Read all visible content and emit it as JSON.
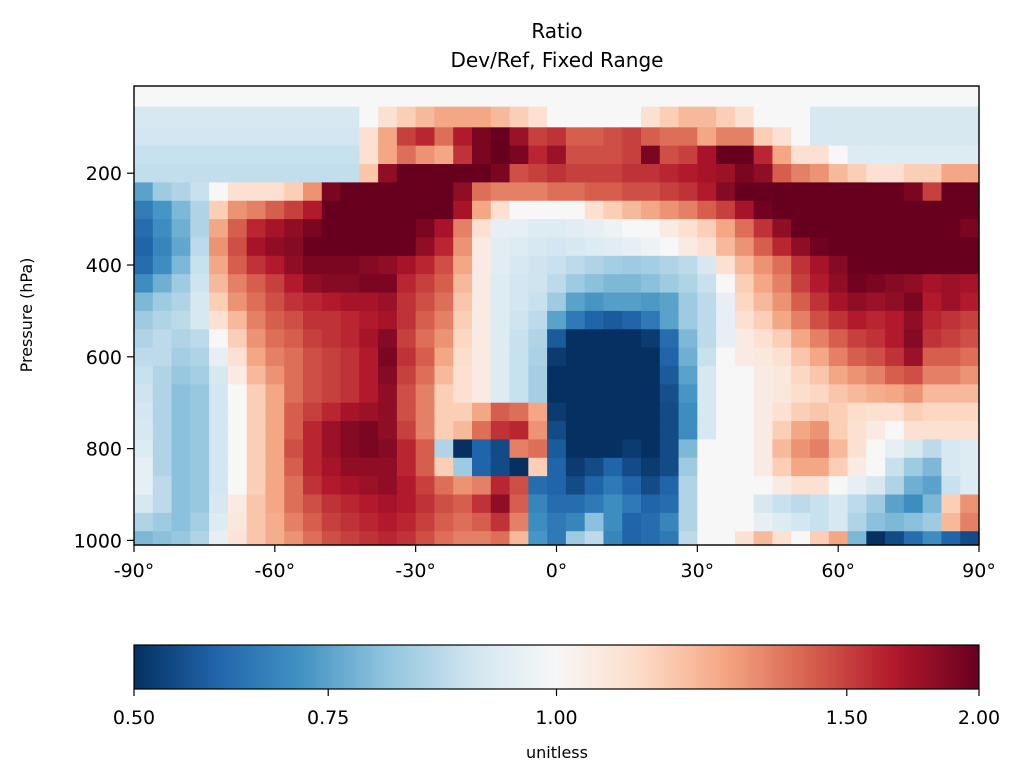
{
  "chart_data": {
    "type": "heatmap",
    "title": "Ratio",
    "subtitle": "Dev/Ref, Fixed Range",
    "xlabel": "",
    "ylabel": "Pressure (hPa)",
    "x_ticks": [
      "-90°",
      "-60°",
      "-30°",
      "0°",
      "30°",
      "60°",
      "90°"
    ],
    "x_tick_values": [
      -90,
      -60,
      -30,
      0,
      30,
      60,
      90
    ],
    "xlim": [
      -90,
      90
    ],
    "y_ticks": [
      "200",
      "400",
      "600",
      "800",
      "1000"
    ],
    "y_tick_values": [
      200,
      400,
      600,
      800,
      1000
    ],
    "ylim": [
      1010,
      10
    ],
    "colorbar": {
      "label": "unitless",
      "tick_labels": [
        "0.50",
        "0.75",
        "1.00",
        "1.50",
        "2.00"
      ],
      "tick_values": [
        0.5,
        0.75,
        1.0,
        1.5,
        2.0
      ],
      "range": [
        0.5,
        2.0
      ],
      "scale": "symmetric log-ratio",
      "colormap": "RdBu_r"
    },
    "grid": false,
    "latitudes": [
      -88,
      -84,
      -80,
      -76,
      -72,
      -68,
      -64,
      -60,
      -56,
      -52,
      -48,
      -44,
      -40,
      -36,
      -32,
      -28,
      -24,
      -20,
      -16,
      -12,
      -8,
      -4,
      0,
      4,
      8,
      12,
      16,
      20,
      24,
      28,
      32,
      36,
      40,
      44,
      48,
      52,
      56,
      60,
      64,
      68,
      72,
      76,
      80,
      84,
      88
    ],
    "pressure_levels": [
      30,
      80,
      120,
      160,
      200,
      240,
      280,
      320,
      360,
      400,
      440,
      480,
      520,
      560,
      600,
      640,
      680,
      720,
      760,
      800,
      840,
      880,
      920,
      960,
      1000
    ],
    "ratio_values": [
      [
        1.0,
        1.0,
        1.0,
        1.0,
        1.0,
        1.0,
        1.0,
        1.0,
        1.0,
        1.0,
        1.0,
        1.0,
        1.0,
        1.0,
        1.0,
        1.0,
        1.0,
        1.0,
        1.0,
        1.0,
        1.0,
        1.0,
        1.0,
        1.0,
        1.0,
        1.0,
        1.0,
        1.0,
        1.0,
        1.0,
        1.0,
        1.0,
        1.0,
        1.0,
        1.0,
        1.0,
        1.0,
        1.0,
        1.0,
        1.0,
        1.0,
        1.0,
        1.0,
        1.0,
        1.0
      ],
      [
        0.95,
        0.95,
        0.95,
        0.95,
        0.95,
        0.95,
        0.95,
        0.95,
        0.95,
        0.95,
        0.95,
        0.95,
        1.0,
        1.05,
        1.1,
        1.15,
        1.2,
        1.2,
        1.2,
        1.15,
        1.1,
        1.05,
        1.0,
        1.0,
        1.0,
        1.0,
        1.0,
        1.05,
        1.1,
        1.15,
        1.15,
        1.1,
        1.05,
        1.0,
        1.0,
        1.0,
        0.95,
        0.95,
        0.95,
        0.95,
        0.95,
        0.95,
        0.95,
        0.95,
        0.95
      ],
      [
        0.94,
        0.94,
        0.94,
        0.94,
        0.94,
        0.94,
        0.94,
        0.94,
        0.94,
        0.94,
        0.94,
        0.94,
        1.05,
        1.2,
        1.5,
        1.6,
        1.35,
        1.65,
        1.9,
        2.0,
        1.75,
        1.5,
        1.55,
        1.4,
        1.4,
        1.45,
        1.5,
        1.4,
        1.35,
        1.35,
        1.2,
        1.3,
        1.3,
        1.1,
        1.05,
        1.0,
        0.95,
        0.95,
        0.95,
        0.95,
        0.95,
        0.95,
        0.95,
        0.95,
        0.95
      ],
      [
        0.92,
        0.92,
        0.92,
        0.92,
        0.92,
        0.92,
        0.92,
        0.92,
        0.92,
        0.92,
        0.92,
        0.92,
        1.05,
        1.2,
        1.35,
        1.25,
        1.2,
        1.55,
        1.9,
        2.0,
        1.9,
        1.6,
        1.75,
        1.45,
        1.45,
        1.45,
        1.5,
        1.9,
        1.45,
        1.5,
        1.7,
        2.0,
        2.0,
        1.6,
        1.2,
        1.05,
        1.05,
        1.0,
        0.96,
        0.96,
        0.96,
        0.96,
        0.96,
        0.96,
        0.96
      ],
      [
        0.91,
        0.91,
        0.91,
        0.91,
        0.91,
        0.91,
        0.91,
        0.91,
        0.91,
        0.91,
        0.91,
        0.91,
        1.12,
        1.8,
        2.0,
        2.0,
        2.0,
        2.0,
        2.0,
        1.9,
        1.45,
        1.5,
        1.55,
        1.5,
        1.5,
        1.5,
        1.55,
        1.55,
        1.6,
        1.65,
        1.7,
        1.75,
        1.9,
        1.8,
        1.4,
        1.3,
        1.25,
        1.15,
        1.1,
        1.05,
        1.05,
        1.1,
        1.1,
        1.2,
        1.2
      ],
      [
        0.75,
        0.85,
        0.88,
        0.92,
        1.0,
        1.05,
        1.05,
        1.05,
        1.1,
        1.25,
        1.9,
        2.0,
        2.0,
        2.0,
        2.0,
        2.0,
        2.0,
        1.8,
        1.35,
        1.3,
        1.3,
        1.3,
        1.35,
        1.35,
        1.4,
        1.4,
        1.45,
        1.45,
        1.5,
        1.55,
        1.65,
        1.85,
        2.0,
        2.0,
        2.0,
        2.0,
        2.0,
        2.0,
        2.0,
        2.0,
        2.0,
        1.9,
        1.5,
        2.0,
        2.0
      ],
      [
        0.66,
        0.72,
        0.8,
        0.88,
        1.1,
        1.25,
        1.3,
        1.4,
        1.5,
        1.65,
        2.0,
        2.0,
        2.0,
        2.0,
        2.0,
        2.0,
        2.0,
        1.7,
        1.2,
        1.05,
        1.0,
        1.0,
        1.0,
        1.0,
        1.05,
        1.1,
        1.15,
        1.2,
        1.25,
        1.3,
        1.4,
        1.5,
        1.7,
        1.95,
        2.0,
        2.0,
        2.0,
        2.0,
        2.0,
        2.0,
        2.0,
        2.0,
        2.0,
        2.0,
        2.0
      ],
      [
        0.62,
        0.7,
        0.78,
        0.88,
        1.2,
        1.4,
        1.6,
        1.7,
        1.8,
        1.9,
        2.0,
        2.0,
        2.0,
        2.0,
        2.0,
        1.9,
        1.7,
        1.3,
        1.05,
        0.98,
        0.98,
        0.96,
        0.96,
        0.97,
        0.98,
        0.99,
        1.0,
        1.0,
        1.02,
        1.05,
        1.1,
        1.2,
        1.35,
        1.55,
        1.8,
        2.0,
        2.0,
        2.0,
        2.0,
        2.0,
        2.0,
        2.0,
        2.0,
        2.0,
        1.9
      ],
      [
        0.6,
        0.68,
        0.76,
        0.9,
        1.25,
        1.45,
        1.7,
        1.8,
        1.85,
        2.0,
        2.0,
        2.0,
        2.0,
        2.0,
        2.0,
        1.8,
        1.6,
        1.25,
        1.02,
        0.97,
        0.96,
        0.95,
        0.94,
        0.95,
        0.96,
        0.97,
        0.98,
        0.99,
        1.0,
        1.02,
        1.05,
        1.15,
        1.25,
        1.4,
        1.6,
        1.8,
        1.95,
        2.0,
        2.0,
        2.0,
        2.0,
        2.0,
        2.0,
        2.0,
        2.0
      ],
      [
        0.62,
        0.7,
        0.8,
        0.92,
        1.2,
        1.4,
        1.55,
        1.65,
        1.8,
        1.9,
        1.9,
        1.9,
        1.85,
        1.8,
        1.7,
        1.6,
        1.45,
        1.2,
        1.02,
        0.97,
        0.95,
        0.93,
        0.92,
        0.9,
        0.88,
        0.86,
        0.85,
        0.86,
        0.88,
        0.9,
        0.95,
        1.05,
        1.15,
        1.25,
        1.35,
        1.55,
        1.7,
        1.85,
        2.0,
        2.0,
        2.0,
        2.0,
        2.0,
        2.0,
        2.0
      ],
      [
        0.7,
        0.78,
        0.85,
        0.93,
        1.15,
        1.3,
        1.4,
        1.5,
        1.65,
        1.8,
        1.85,
        1.85,
        1.9,
        1.9,
        1.6,
        1.5,
        1.4,
        1.15,
        1.02,
        0.96,
        0.94,
        0.93,
        0.9,
        0.85,
        0.82,
        0.8,
        0.8,
        0.82,
        0.85,
        0.88,
        0.92,
        1.0,
        1.1,
        1.2,
        1.3,
        1.5,
        1.65,
        1.8,
        1.95,
        1.9,
        1.85,
        1.8,
        1.7,
        1.75,
        1.7
      ],
      [
        0.8,
        0.85,
        0.88,
        0.95,
        1.1,
        1.25,
        1.35,
        1.45,
        1.55,
        1.6,
        1.65,
        1.7,
        1.7,
        1.75,
        1.55,
        1.45,
        1.35,
        1.12,
        1.02,
        0.96,
        0.94,
        0.92,
        0.85,
        0.75,
        0.72,
        0.74,
        0.74,
        0.73,
        0.75,
        0.85,
        0.9,
        0.98,
        1.08,
        1.15,
        1.25,
        1.4,
        1.55,
        1.7,
        1.8,
        1.75,
        1.8,
        1.9,
        1.65,
        1.75,
        1.65
      ],
      [
        0.85,
        0.88,
        0.9,
        0.95,
        1.05,
        1.15,
        1.3,
        1.4,
        1.45,
        1.55,
        1.55,
        1.6,
        1.65,
        1.7,
        1.55,
        1.4,
        1.3,
        1.1,
        1.02,
        0.96,
        0.93,
        0.9,
        0.75,
        0.65,
        0.6,
        0.58,
        0.6,
        0.65,
        0.75,
        0.85,
        0.9,
        0.98,
        1.05,
        1.1,
        1.2,
        1.3,
        1.45,
        1.55,
        1.65,
        1.6,
        1.65,
        1.8,
        1.6,
        1.55,
        1.5
      ],
      [
        0.88,
        0.9,
        0.88,
        0.9,
        1.0,
        1.1,
        1.25,
        1.35,
        1.4,
        1.5,
        1.55,
        1.6,
        1.7,
        1.85,
        1.5,
        1.35,
        1.25,
        1.08,
        1.02,
        0.96,
        0.92,
        0.88,
        0.58,
        0.5,
        0.5,
        0.5,
        0.5,
        0.52,
        0.62,
        0.8,
        0.9,
        0.98,
        1.02,
        1.05,
        1.1,
        1.2,
        1.3,
        1.4,
        1.5,
        1.55,
        1.65,
        1.85,
        1.55,
        1.5,
        1.45
      ],
      [
        0.9,
        0.9,
        0.86,
        0.88,
        0.98,
        1.05,
        1.2,
        1.3,
        1.35,
        1.45,
        1.5,
        1.55,
        1.65,
        1.9,
        1.55,
        1.4,
        1.2,
        1.06,
        1.02,
        0.96,
        0.92,
        0.87,
        0.52,
        0.5,
        0.5,
        0.5,
        0.5,
        0.5,
        0.6,
        0.78,
        0.92,
        1.0,
        1.02,
        1.03,
        1.05,
        1.12,
        1.2,
        1.3,
        1.4,
        1.45,
        1.55,
        1.75,
        1.4,
        1.4,
        1.35
      ],
      [
        0.92,
        0.88,
        0.84,
        0.86,
        0.95,
        1.02,
        1.15,
        1.25,
        1.35,
        1.45,
        1.5,
        1.55,
        1.65,
        1.85,
        1.5,
        1.35,
        1.15,
        1.05,
        1.02,
        0.96,
        0.92,
        0.86,
        0.5,
        0.5,
        0.5,
        0.5,
        0.5,
        0.5,
        0.58,
        0.75,
        0.95,
        1.0,
        1.0,
        1.02,
        1.03,
        1.08,
        1.12,
        1.2,
        1.25,
        1.3,
        1.4,
        1.45,
        1.3,
        1.3,
        1.25
      ],
      [
        0.93,
        0.88,
        0.82,
        0.84,
        0.94,
        1.0,
        1.1,
        1.2,
        1.35,
        1.45,
        1.5,
        1.55,
        1.65,
        1.8,
        1.45,
        1.3,
        1.1,
        1.05,
        1.02,
        0.96,
        0.92,
        0.86,
        0.5,
        0.5,
        0.5,
        0.5,
        0.5,
        0.5,
        0.56,
        0.72,
        0.95,
        1.0,
        1.0,
        1.02,
        1.03,
        1.06,
        1.08,
        1.12,
        1.15,
        1.18,
        1.2,
        1.25,
        1.15,
        1.15,
        1.15
      ],
      [
        0.94,
        0.88,
        0.82,
        0.84,
        0.94,
        1.0,
        1.1,
        1.2,
        1.4,
        1.5,
        1.6,
        1.7,
        1.75,
        1.8,
        1.45,
        1.3,
        1.1,
        1.1,
        1.2,
        1.4,
        1.35,
        1.2,
        0.52,
        0.5,
        0.5,
        0.5,
        0.5,
        0.5,
        0.55,
        0.7,
        0.95,
        1.0,
        1.0,
        1.02,
        1.05,
        1.1,
        1.12,
        1.1,
        1.06,
        1.05,
        1.05,
        1.1,
        1.08,
        1.08,
        1.08
      ],
      [
        0.95,
        0.88,
        0.82,
        0.84,
        0.94,
        1.0,
        1.1,
        1.2,
        1.4,
        1.6,
        1.75,
        1.85,
        1.9,
        1.8,
        1.5,
        1.3,
        1.1,
        1.15,
        1.35,
        1.55,
        1.6,
        1.25,
        0.55,
        0.5,
        0.5,
        0.5,
        0.5,
        0.5,
        0.55,
        0.7,
        0.95,
        1.0,
        1.0,
        1.02,
        1.1,
        1.2,
        1.25,
        1.1,
        1.05,
        1.02,
        1.0,
        1.05,
        1.05,
        1.05,
        1.05
      ],
      [
        0.96,
        0.88,
        0.82,
        0.84,
        0.94,
        1.0,
        1.1,
        1.2,
        1.45,
        1.6,
        1.75,
        1.85,
        1.9,
        1.85,
        1.6,
        1.4,
        0.88,
        0.5,
        0.6,
        0.55,
        1.3,
        1.35,
        0.58,
        0.5,
        0.5,
        0.5,
        0.52,
        0.5,
        0.55,
        0.8,
        1.0,
        1.0,
        1.0,
        1.02,
        1.15,
        1.25,
        1.3,
        1.15,
        1.05,
        1.0,
        0.98,
        0.95,
        0.9,
        0.95,
        0.96
      ],
      [
        0.98,
        0.88,
        0.82,
        0.84,
        0.94,
        1.0,
        1.1,
        1.2,
        1.4,
        1.6,
        1.7,
        1.8,
        1.8,
        1.8,
        1.6,
        1.4,
        1.1,
        0.85,
        0.6,
        0.55,
        0.5,
        1.1,
        0.6,
        0.52,
        0.55,
        0.6,
        0.55,
        0.52,
        0.55,
        0.85,
        1.0,
        1.0,
        1.0,
        1.02,
        1.1,
        1.2,
        1.2,
        1.1,
        1.02,
        1.0,
        0.92,
        0.85,
        0.8,
        0.95,
        0.96
      ],
      [
        0.98,
        0.9,
        0.82,
        0.84,
        0.94,
        1.0,
        1.1,
        1.2,
        1.35,
        1.55,
        1.65,
        1.7,
        1.75,
        1.8,
        1.65,
        1.5,
        1.35,
        1.25,
        1.3,
        1.6,
        1.45,
        0.62,
        0.6,
        0.55,
        0.6,
        0.65,
        0.6,
        0.55,
        0.6,
        0.88,
        1.0,
        1.0,
        1.0,
        1.0,
        1.02,
        1.05,
        1.05,
        1.0,
        0.98,
        0.95,
        0.88,
        0.78,
        0.75,
        0.92,
        0.96
      ],
      [
        0.95,
        0.9,
        0.82,
        0.84,
        0.95,
        1.02,
        1.12,
        1.2,
        1.35,
        1.45,
        1.55,
        1.6,
        1.65,
        1.7,
        1.65,
        1.55,
        1.45,
        1.4,
        1.55,
        1.8,
        1.4,
        0.68,
        0.62,
        0.62,
        0.65,
        0.7,
        0.65,
        0.6,
        0.62,
        0.88,
        1.0,
        1.0,
        1.0,
        0.95,
        0.92,
        0.9,
        0.92,
        0.95,
        0.9,
        0.85,
        0.75,
        0.7,
        0.8,
        1.1,
        1.25
      ],
      [
        0.88,
        0.85,
        0.82,
        0.86,
        0.96,
        1.03,
        1.12,
        1.18,
        1.3,
        1.4,
        1.5,
        1.55,
        1.6,
        1.65,
        1.6,
        1.5,
        1.4,
        1.35,
        1.4,
        1.55,
        1.3,
        0.7,
        0.65,
        0.68,
        0.82,
        0.7,
        0.6,
        0.62,
        0.68,
        0.88,
        1.0,
        1.0,
        1.0,
        0.98,
        0.96,
        0.94,
        0.92,
        0.95,
        0.88,
        0.82,
        0.8,
        0.82,
        0.85,
        1.15,
        1.3
      ],
      [
        0.8,
        0.82,
        0.84,
        0.88,
        0.98,
        1.04,
        1.12,
        1.18,
        1.25,
        1.35,
        1.45,
        1.5,
        1.55,
        1.6,
        1.55,
        1.45,
        1.35,
        1.3,
        1.3,
        1.35,
        1.15,
        0.72,
        0.65,
        0.85,
        0.9,
        0.68,
        0.6,
        0.62,
        0.65,
        0.9,
        1.0,
        1.0,
        1.05,
        1.15,
        1.05,
        1.0,
        1.1,
        1.2,
        0.8,
        0.5,
        0.55,
        0.62,
        0.7,
        0.6,
        0.55
      ]
    ]
  }
}
